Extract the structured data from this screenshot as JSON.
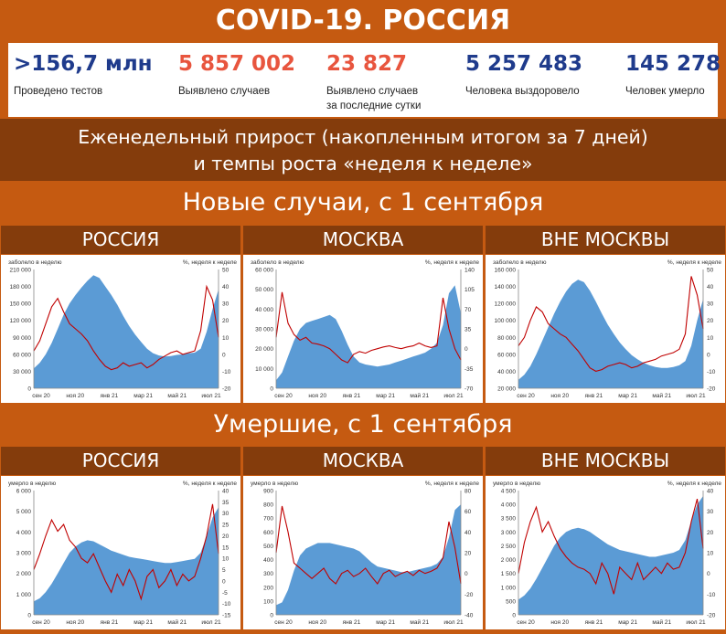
{
  "header": {
    "title": "COVID-19. РОССИЯ",
    "subtitle_line1": "Еженедельный прирост (накопленным итогом за 7 дней)",
    "subtitle_line2": "и темпы роста «неделя к неделе»"
  },
  "stats": [
    {
      "value": ">156,7 млн",
      "label": "Проведено тестов",
      "label2": "",
      "color": "#1f3b8c"
    },
    {
      "value": "5 857 002",
      "label": "Выявлено случаев",
      "label2": "",
      "color": "#e8553e"
    },
    {
      "value": "23 827",
      "label": "Выявлено случаев",
      "label2": "за последние сутки",
      "color": "#e8553e"
    },
    {
      "value": "5 257 483",
      "label": "Человека выздоровело",
      "label2": "",
      "color": "#1f3b8c"
    },
    {
      "value": "145 278",
      "label": "Человек умерло",
      "label2": "",
      "color": "#1f3b8c"
    }
  ],
  "sections": {
    "cases": "Новые случаи, с 1 сентября",
    "deaths": "Умершие, с 1 сентября"
  },
  "regions": [
    "РОССИЯ",
    "МОСКВА",
    "ВНЕ МОСКВЫ"
  ],
  "colors": {
    "area": "#5b9bd5",
    "line": "#c00000",
    "accent": "#c55a11",
    "dark": "#843c0c"
  },
  "chart_data": [
    {
      "type": "area",
      "region": "РОССИЯ",
      "ylabel_left": "заболело в неделю",
      "ylabel_right": "%, неделя к неделе",
      "xticks": [
        "сен 20",
        "ноя 20",
        "янв 21",
        "мар 21",
        "май 21",
        "июл 21"
      ],
      "ylim": [
        0,
        210000
      ],
      "yticks": [
        "0",
        "30 000",
        "60 000",
        "90 000",
        "120 000",
        "150 000",
        "180 000",
        "210 000"
      ],
      "y2lim": [
        -20,
        50
      ],
      "y2ticks": [
        "-20",
        "-10",
        "0",
        "10",
        "20",
        "30",
        "40",
        "50"
      ],
      "area": [
        35000,
        45000,
        60000,
        80000,
        105000,
        130000,
        150000,
        165000,
        178000,
        190000,
        200000,
        195000,
        180000,
        165000,
        148000,
        128000,
        110000,
        95000,
        82000,
        70000,
        62000,
        58000,
        56000,
        57000,
        59000,
        60000,
        62000,
        63000,
        70000,
        100000,
        140000,
        175000
      ],
      "line": [
        2,
        8,
        18,
        28,
        33,
        25,
        18,
        15,
        12,
        8,
        2,
        -3,
        -7,
        -9,
        -8,
        -5,
        -7,
        -6,
        -5,
        -8,
        -6,
        -3,
        -1,
        1,
        2,
        0,
        1,
        2,
        14,
        40,
        32,
        10
      ]
    },
    {
      "type": "area",
      "region": "МОСКВА",
      "ylabel_left": "заболело в неделю",
      "ylabel_right": "%, неделя к неделе",
      "xticks": [
        "сен 20",
        "ноя 20",
        "янв 21",
        "мар 21",
        "май 21",
        "июл 21"
      ],
      "ylim": [
        0,
        60000
      ],
      "yticks": [
        "0",
        "10 000",
        "20 000",
        "30 000",
        "40 000",
        "50 000",
        "60 000"
      ],
      "y2lim": [
        -70,
        140
      ],
      "y2ticks": [
        "-70",
        "-35",
        "0",
        "35",
        "70",
        "105",
        "140"
      ],
      "area": [
        4000,
        8000,
        16000,
        24000,
        30000,
        33000,
        34000,
        35000,
        36000,
        37000,
        35000,
        29000,
        22000,
        16000,
        13000,
        12000,
        11500,
        11000,
        11500,
        12000,
        13000,
        14000,
        15000,
        16000,
        17000,
        18000,
        20000,
        23000,
        32000,
        48000,
        52000,
        38000
      ],
      "line": [
        20,
        100,
        45,
        25,
        15,
        20,
        10,
        8,
        5,
        0,
        -10,
        -20,
        -25,
        -10,
        -5,
        -8,
        -3,
        0,
        3,
        5,
        2,
        0,
        3,
        5,
        10,
        5,
        2,
        5,
        90,
        35,
        0,
        -20
      ]
    },
    {
      "type": "area",
      "region": "ВНЕ МОСКВЫ",
      "ylabel_left": "заболело в неделю",
      "ylabel_right": "%, неделя к неделе",
      "xticks": [
        "сен 20",
        "ноя 20",
        "янв 21",
        "мар 21",
        "май 21",
        "июл 21"
      ],
      "ylim": [
        20000,
        160000
      ],
      "yticks": [
        "20 000",
        "40 000",
        "60 000",
        "80 000",
        "100 000",
        "120 000",
        "140 000",
        "160 000"
      ],
      "y2lim": [
        -20,
        50
      ],
      "y2ticks": [
        "-20",
        "-10",
        "0",
        "10",
        "20",
        "30",
        "40",
        "50"
      ],
      "area": [
        30000,
        36000,
        46000,
        60000,
        76000,
        92000,
        108000,
        122000,
        134000,
        143000,
        148000,
        145000,
        135000,
        122000,
        108000,
        95000,
        84000,
        74000,
        66000,
        59000,
        54000,
        50000,
        47000,
        45000,
        44000,
        44000,
        45000,
        47000,
        52000,
        70000,
        100000,
        125000
      ],
      "line": [
        5,
        10,
        20,
        28,
        25,
        18,
        15,
        12,
        10,
        6,
        2,
        -3,
        -8,
        -10,
        -9,
        -7,
        -6,
        -5,
        -6,
        -8,
        -7,
        -5,
        -4,
        -3,
        -1,
        0,
        1,
        3,
        12,
        46,
        35,
        15
      ]
    },
    {
      "type": "area",
      "region": "РОССИЯ",
      "ylabel_left": "умерло в неделю",
      "ylabel_right": "%, неделя к неделе",
      "xticks": [
        "сен 20",
        "ноя 20",
        "янв 21",
        "мар 21",
        "май 21",
        "июл 21"
      ],
      "ylim": [
        0,
        6000
      ],
      "yticks": [
        "0",
        "1 000",
        "2 000",
        "3 000",
        "4 000",
        "5 000",
        "6 000"
      ],
      "y2lim": [
        -15,
        40
      ],
      "y2ticks": [
        "-15",
        "-10",
        "-5",
        "0",
        "5",
        "10",
        "15",
        "20",
        "25",
        "30",
        "35",
        "40"
      ],
      "area": [
        650,
        800,
        1100,
        1500,
        2000,
        2500,
        3000,
        3300,
        3500,
        3600,
        3550,
        3400,
        3250,
        3100,
        3000,
        2900,
        2800,
        2750,
        2700,
        2650,
        2600,
        2550,
        2500,
        2500,
        2550,
        2600,
        2650,
        2700,
        3000,
        3800,
        4700,
        5200
      ],
      "line": [
        5,
        12,
        20,
        27,
        22,
        25,
        18,
        15,
        10,
        8,
        12,
        6,
        0,
        -5,
        3,
        -2,
        5,
        0,
        -8,
        2,
        5,
        -3,
        0,
        5,
        -2,
        3,
        0,
        2,
        10,
        20,
        34,
        12
      ]
    },
    {
      "type": "area",
      "region": "МОСКВА",
      "ylabel_left": "умерло в неделю",
      "ylabel_right": "%, неделя к неделе",
      "xticks": [
        "сен 20",
        "ноя 20",
        "янв 21",
        "мар 21",
        "май 21",
        "июл 21"
      ],
      "ylim": [
        0,
        900
      ],
      "yticks": [
        "0",
        "100",
        "200",
        "300",
        "400",
        "500",
        "600",
        "700",
        "800",
        "900"
      ],
      "y2lim": [
        -40,
        80
      ],
      "y2ticks": [
        "-40",
        "-20",
        "0",
        "20",
        "40",
        "60",
        "80"
      ],
      "area": [
        70,
        90,
        180,
        320,
        430,
        480,
        500,
        520,
        520,
        520,
        510,
        500,
        490,
        480,
        460,
        420,
        380,
        350,
        340,
        330,
        320,
        310,
        310,
        320,
        330,
        340,
        350,
        370,
        420,
        560,
        760,
        800
      ],
      "line": [
        20,
        65,
        40,
        10,
        5,
        0,
        -5,
        0,
        5,
        -5,
        -10,
        0,
        3,
        -3,
        0,
        5,
        -3,
        -10,
        0,
        3,
        -3,
        0,
        2,
        -2,
        3,
        0,
        2,
        5,
        15,
        50,
        25,
        -10
      ]
    },
    {
      "type": "area",
      "region": "ВНЕ МОСКВЫ",
      "ylabel_left": "умерло в неделю",
      "ylabel_right": "%, неделя к неделе",
      "xticks": [
        "сен 20",
        "ноя 20",
        "янв 21",
        "мар 21",
        "май 21",
        "июл 21"
      ],
      "ylim": [
        0,
        4500
      ],
      "yticks": [
        "0",
        "500",
        "1 000",
        "1 500",
        "2 000",
        "2 500",
        "3 000",
        "3 500",
        "4 000",
        "4 500"
      ],
      "y2lim": [
        -20,
        40
      ],
      "y2ticks": [
        "-20",
        "-10",
        "0",
        "10",
        "20",
        "30",
        "40"
      ],
      "area": [
        550,
        700,
        950,
        1300,
        1700,
        2100,
        2500,
        2800,
        3000,
        3100,
        3150,
        3100,
        3000,
        2850,
        2700,
        2550,
        2450,
        2350,
        2300,
        2250,
        2200,
        2150,
        2100,
        2100,
        2150,
        2200,
        2250,
        2350,
        2700,
        3400,
        4000,
        4300
      ],
      "line": [
        0,
        15,
        25,
        32,
        20,
        25,
        18,
        12,
        8,
        5,
        3,
        2,
        0,
        -5,
        5,
        0,
        -10,
        3,
        0,
        -3,
        5,
        -3,
        0,
        3,
        0,
        5,
        2,
        3,
        10,
        25,
        36,
        12
      ]
    }
  ]
}
